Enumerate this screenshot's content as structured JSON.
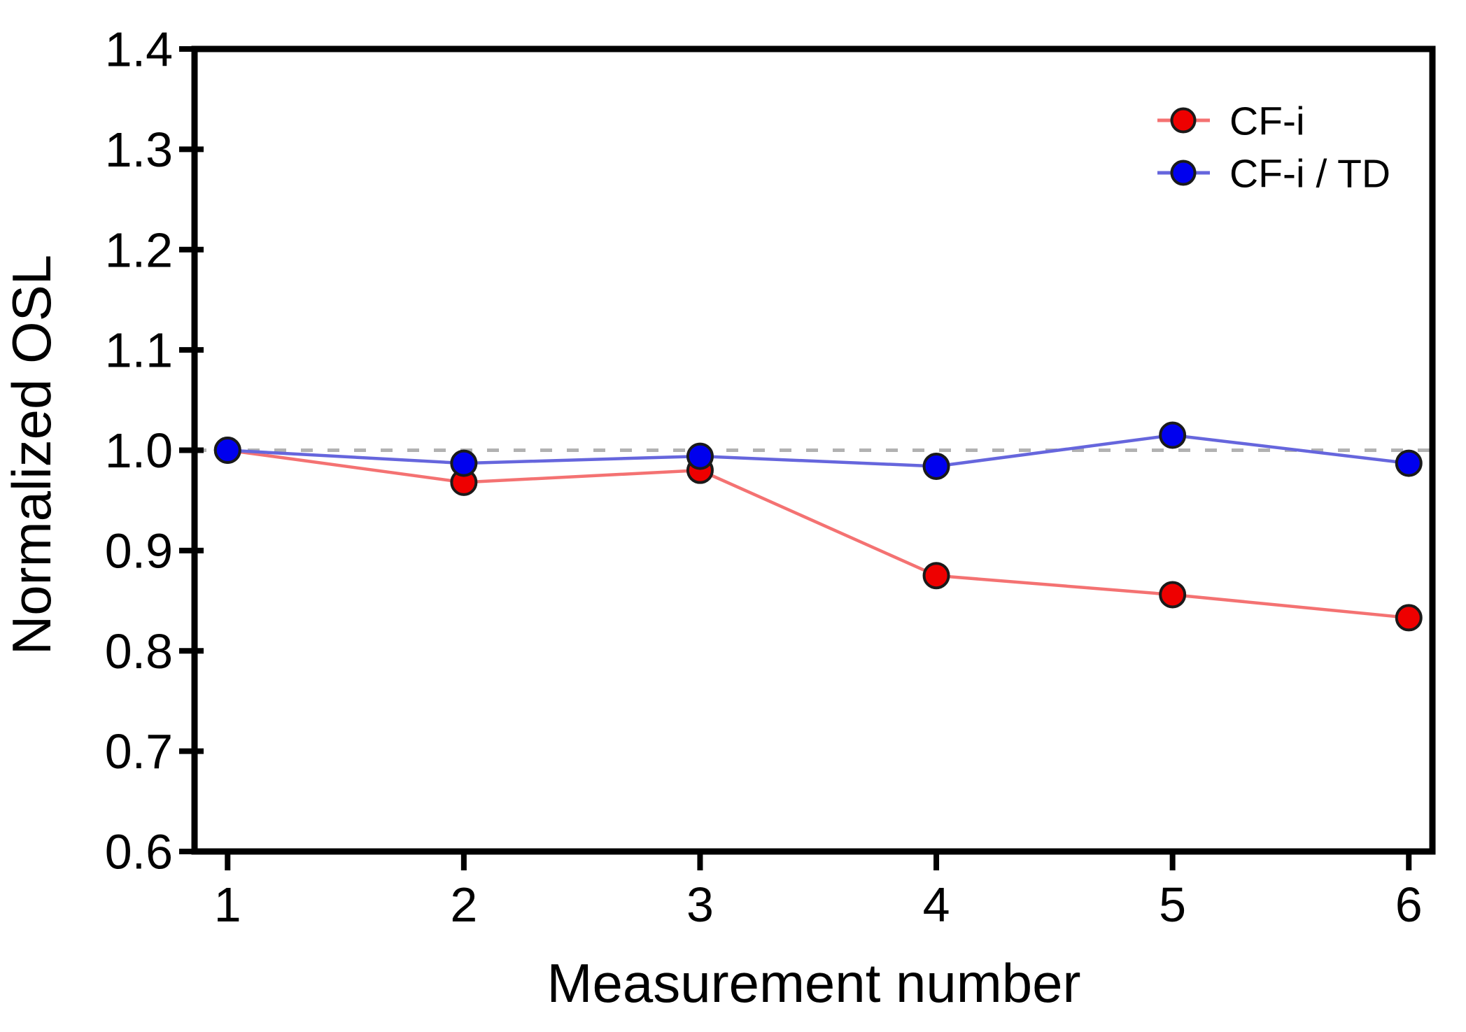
{
  "figure": {
    "background_color": "#ffffff",
    "frame_color": "#000000",
    "text_color": "#000000"
  },
  "chart_data": {
    "type": "line",
    "title": "",
    "xlabel": "Measurement number",
    "ylabel": "Normalized OSL",
    "x": [
      1,
      2,
      3,
      4,
      5,
      6
    ],
    "xtick_labels": [
      "1",
      "2",
      "3",
      "4",
      "5",
      "6"
    ],
    "ytick_values": [
      0.6,
      0.7,
      0.8,
      0.9,
      1.0,
      1.1,
      1.2,
      1.3,
      1.4
    ],
    "ytick_labels": [
      "0.6",
      "0.7",
      "0.8",
      "0.9",
      "1.0",
      "1.1",
      "1.2",
      "1.3",
      "1.4"
    ],
    "xlim": [
      0.86,
      6.1
    ],
    "ylim": [
      0.6,
      1.4
    ],
    "grid": false,
    "legend_position": "top-right",
    "reference_line": {
      "y": 1.0,
      "style": "dashed",
      "color": "#b2b2b2"
    },
    "series": [
      {
        "name": "CF-i",
        "marker": "circle",
        "marker_color": "#ee0000",
        "marker_edge_color": "#1a1a1a",
        "line_color": "#f47272",
        "values": [
          1.0,
          0.968,
          0.98,
          0.875,
          0.856,
          0.833
        ]
      },
      {
        "name": "CF-i / TD",
        "marker": "circle",
        "marker_color": "#0000ee",
        "marker_edge_color": "#1a1a1a",
        "line_color": "#6666dd",
        "values": [
          1.0,
          0.987,
          0.994,
          0.984,
          1.015,
          0.987
        ]
      }
    ]
  }
}
